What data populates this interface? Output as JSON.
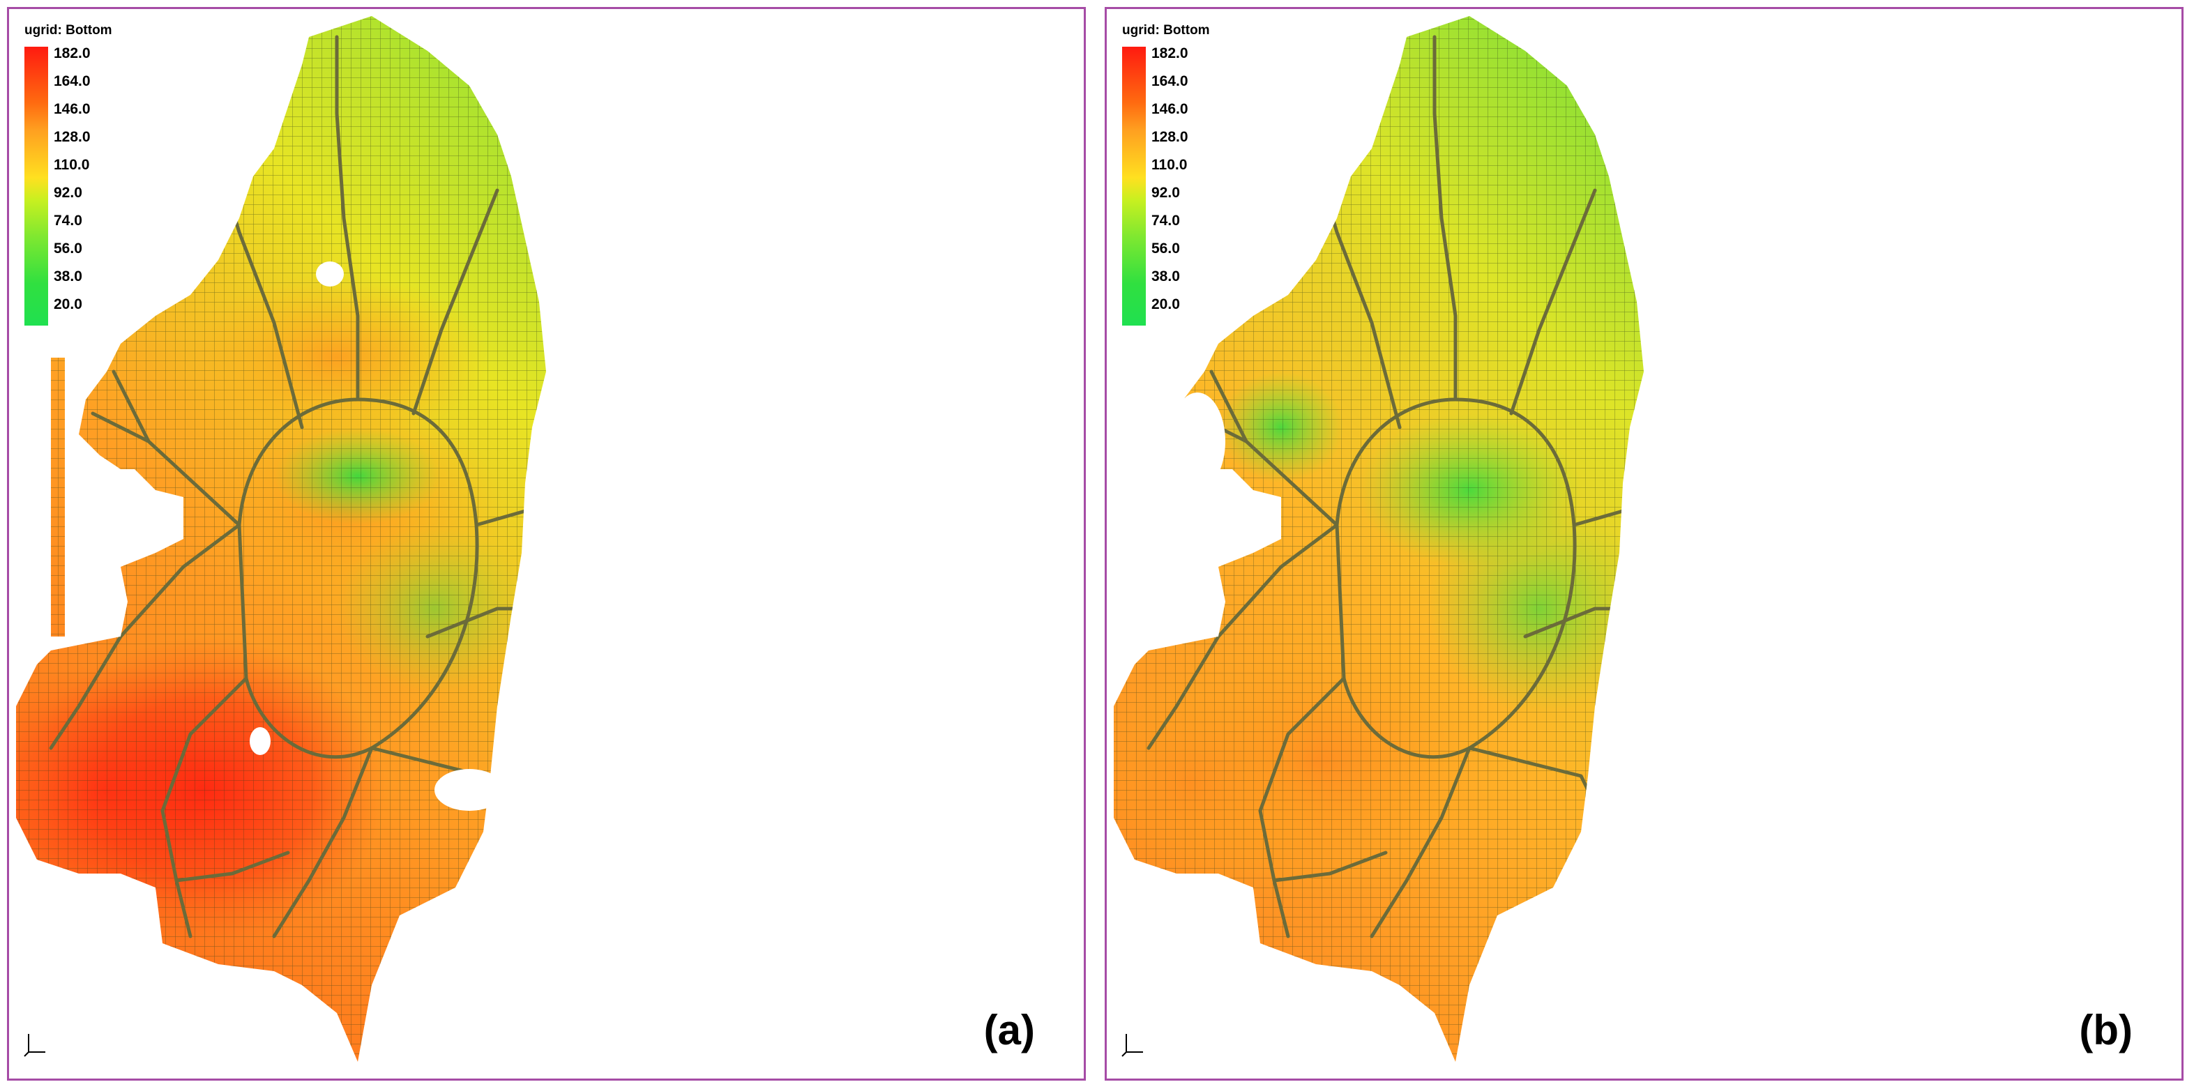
{
  "panels": [
    {
      "id": "a",
      "legend_title": "ugrid:  Bottom",
      "legend_labels": [
        "182.0",
        "164.0",
        "146.0",
        "128.0",
        "110.0",
        "92.0",
        "74.0",
        "56.0",
        "38.0",
        "20.0"
      ],
      "panel_label": "(a)"
    },
    {
      "id": "b",
      "legend_title": "ugrid:  Bottom",
      "legend_labels": [
        "182.0",
        "164.0",
        "146.0",
        "128.0",
        "110.0",
        "92.0",
        "74.0",
        "56.0",
        "38.0",
        "20.0"
      ],
      "panel_label": "(b)"
    }
  ],
  "colors": {
    "frame": "#a64ca6",
    "high": "#ff1a10",
    "mid_high": "#ff8a20",
    "mid": "#ffe020",
    "low": "#30e040",
    "river": "#6b6b3a",
    "grid": "#2a3a18"
  }
}
